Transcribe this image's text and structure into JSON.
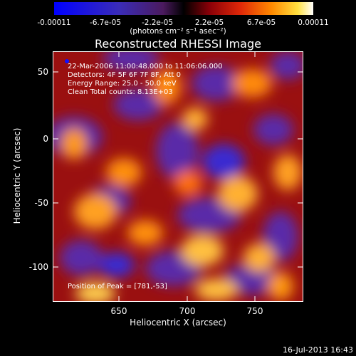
{
  "colorbar": {
    "ticks": [
      "-0.00011",
      "-6.7e-05",
      "-2.2e-05",
      "2.2e-05",
      "6.7e-05",
      "0.00011"
    ],
    "label": "(photons cm⁻² s⁻¹ asec⁻²)",
    "range": [
      -0.00011,
      0.00011
    ]
  },
  "chart_data": {
    "type": "heatmap",
    "title": "Reconstructed RHESSI Image",
    "xlabel": "Heliocentric X (arcsec)",
    "ylabel": "Heliocentric Y (arcsec)",
    "xlim": [
      606,
      790
    ],
    "ylim": [
      -126,
      67
    ],
    "xticks": [
      "650",
      "700",
      "750"
    ],
    "yticks": [
      "50",
      "0",
      "-50",
      "-100"
    ],
    "annotations": {
      "time": "22-Mar-2006 11:00:48.000 to 11:06:06.000",
      "detectors": "Detectors: 4F 5F 6F 7F 8F, Att 0",
      "energy": "Energy Range: 25.0 - 50.0 keV",
      "clean": "Clean     Total counts: 8.13E+03",
      "peak": "Position of Peak = [781,-53]"
    },
    "colormap": "rhessi-blue-purple-red-yellow-white"
  },
  "footer": "16-Jul-2013 16:43"
}
